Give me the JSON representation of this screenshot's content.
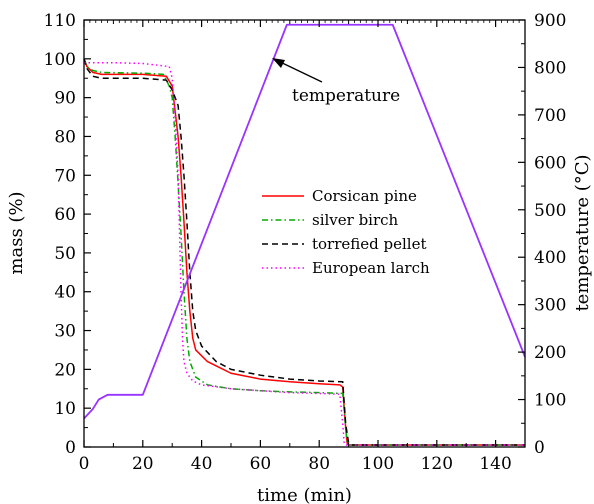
{
  "chart_data": {
    "type": "line",
    "xlabel": "time (min)",
    "ylabel": "mass (%)",
    "y2label": "temperature (°C)",
    "xlim": [
      0,
      150
    ],
    "ylim": [
      0,
      110
    ],
    "y2lim": [
      0,
      900
    ],
    "x_ticks": [
      0,
      20,
      40,
      60,
      80,
      100,
      120,
      140
    ],
    "y_ticks": [
      0,
      10,
      20,
      30,
      40,
      50,
      60,
      70,
      80,
      90,
      100,
      110
    ],
    "y2_ticks": [
      0,
      100,
      200,
      300,
      400,
      500,
      600,
      700,
      800,
      900
    ],
    "grid": false,
    "legend_position": "center-right",
    "annotation": "temperature",
    "series": [
      {
        "name": "Corsican pine",
        "axis": "left",
        "color": "#ff0000",
        "style": "solid",
        "points": [
          [
            0,
            100
          ],
          [
            1,
            98
          ],
          [
            3,
            96.5
          ],
          [
            6,
            96
          ],
          [
            20,
            96
          ],
          [
            28,
            95.5
          ],
          [
            30,
            93
          ],
          [
            32,
            80
          ],
          [
            33,
            70
          ],
          [
            34,
            58
          ],
          [
            35,
            45
          ],
          [
            36,
            35
          ],
          [
            37,
            28
          ],
          [
            38,
            25
          ],
          [
            42,
            22
          ],
          [
            50,
            19
          ],
          [
            60,
            17.5
          ],
          [
            70,
            16.8
          ],
          [
            80,
            16.3
          ],
          [
            87,
            16
          ],
          [
            88,
            15.5
          ],
          [
            89,
            5
          ],
          [
            89.5,
            1
          ],
          [
            90,
            0.5
          ],
          [
            100,
            0.5
          ],
          [
            150,
            0.5
          ]
        ]
      },
      {
        "name": "silver birch",
        "axis": "left",
        "color": "#00aa00",
        "style": "dashdot",
        "points": [
          [
            0,
            100
          ],
          [
            1,
            98
          ],
          [
            3,
            97
          ],
          [
            6,
            96.5
          ],
          [
            20,
            96.3
          ],
          [
            27,
            96
          ],
          [
            29,
            93
          ],
          [
            30,
            90
          ],
          [
            31,
            80
          ],
          [
            32,
            68
          ],
          [
            33,
            55
          ],
          [
            34,
            40
          ],
          [
            35,
            28
          ],
          [
            36,
            22
          ],
          [
            38,
            18
          ],
          [
            42,
            16
          ],
          [
            50,
            15
          ],
          [
            60,
            14.5
          ],
          [
            70,
            14.2
          ],
          [
            80,
            14
          ],
          [
            88,
            13.8
          ],
          [
            89,
            5
          ],
          [
            89.5,
            1
          ],
          [
            90,
            0.5
          ],
          [
            100,
            0.5
          ],
          [
            150,
            0.5
          ]
        ]
      },
      {
        "name": "torrefied pellet",
        "axis": "left",
        "color": "#000000",
        "style": "dashed",
        "points": [
          [
            0,
            100
          ],
          [
            1,
            97.5
          ],
          [
            3,
            95.5
          ],
          [
            6,
            95
          ],
          [
            20,
            95
          ],
          [
            28,
            94.5
          ],
          [
            30,
            92
          ],
          [
            32,
            88
          ],
          [
            33,
            80
          ],
          [
            34,
            70
          ],
          [
            35,
            58
          ],
          [
            36,
            45
          ],
          [
            37,
            35
          ],
          [
            38,
            30
          ],
          [
            40,
            26
          ],
          [
            45,
            22
          ],
          [
            50,
            20
          ],
          [
            60,
            18.5
          ],
          [
            70,
            17.5
          ],
          [
            80,
            17
          ],
          [
            88,
            16.8
          ],
          [
            89,
            6
          ],
          [
            90,
            1
          ],
          [
            91,
            0.5
          ],
          [
            100,
            0.5
          ],
          [
            150,
            0.5
          ]
        ]
      },
      {
        "name": "European larch",
        "axis": "left",
        "color": "#ff00ff",
        "style": "dotted",
        "points": [
          [
            0,
            99
          ],
          [
            2,
            99
          ],
          [
            10,
            99
          ],
          [
            20,
            98.8
          ],
          [
            29,
            98
          ],
          [
            30,
            95
          ],
          [
            31,
            85
          ],
          [
            32,
            70
          ],
          [
            32.5,
            55
          ],
          [
            33,
            40
          ],
          [
            33.5,
            28
          ],
          [
            34,
            22
          ],
          [
            35,
            19
          ],
          [
            37,
            17
          ],
          [
            40,
            16
          ],
          [
            50,
            15
          ],
          [
            60,
            14.5
          ],
          [
            70,
            14
          ],
          [
            80,
            13.8
          ],
          [
            87,
            13.6
          ],
          [
            88,
            6
          ],
          [
            88.5,
            1
          ],
          [
            89,
            0.5
          ],
          [
            100,
            0.5
          ],
          [
            150,
            0.5
          ]
        ]
      },
      {
        "name": "temperature",
        "axis": "right",
        "color": "#9933ff",
        "style": "solid",
        "points": [
          [
            0,
            60
          ],
          [
            3,
            80
          ],
          [
            5,
            100
          ],
          [
            8,
            110
          ],
          [
            19,
            110
          ],
          [
            20,
            110
          ],
          [
            69,
            890
          ],
          [
            70,
            890
          ],
          [
            105,
            890
          ],
          [
            150,
            190
          ]
        ]
      }
    ]
  }
}
